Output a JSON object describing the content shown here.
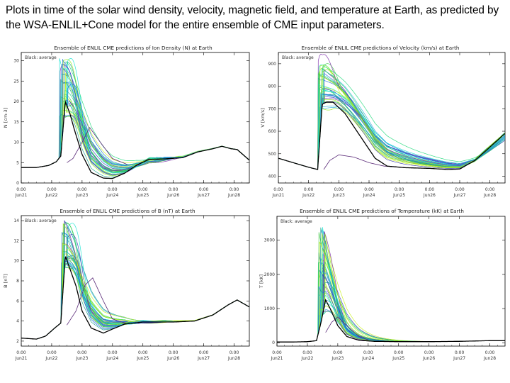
{
  "slide": {
    "title": "Plots in time of the solar wind density, velocity, magnetic field, and temperature at Earth, as predicted by the WSA-ENLIL+Cone model for the entire ensemble of CME input parameters."
  },
  "colors": {
    "average": "#000000",
    "ensemble": [
      "#17e3d2",
      "#1fd97a",
      "#8fe81a",
      "#c9f21c",
      "#2bb0d9",
      "#1b6fd8",
      "#3a3ab8",
      "#7b2aa8",
      "#1aa088",
      "#42c94a"
    ],
    "outlier": "#5a2a78",
    "frame": "#000000"
  },
  "chart_data": [
    {
      "type": "line",
      "title": "Ensemble of ENLIL CME predictions of Ion Density (N) at Earth",
      "legend": "Black: average",
      "ylabel": "N [cm-3]",
      "ylim": [
        0,
        32
      ],
      "yticks": [
        0,
        5,
        10,
        15,
        20,
        25,
        30
      ],
      "xlim": [
        0,
        7.5
      ],
      "xticks": [
        {
          "x": 0,
          "time": "0:00",
          "date": "Jun21"
        },
        {
          "x": 1,
          "time": "0:00",
          "date": "Jun22"
        },
        {
          "x": 2,
          "time": "0:00",
          "date": "Jun23"
        },
        {
          "x": 3,
          "time": "0:00",
          "date": "Jun24"
        },
        {
          "x": 4,
          "time": "0:00",
          "date": "Jun25"
        },
        {
          "x": 5,
          "time": "0:00",
          "date": "Jun26"
        },
        {
          "x": 6,
          "time": "0:00",
          "date": "Jun27"
        },
        {
          "x": 7,
          "time": "0:00",
          "date": "Jun28"
        }
      ],
      "average": [
        [
          0,
          3.8
        ],
        [
          0.5,
          3.8
        ],
        [
          0.9,
          4.3
        ],
        [
          1.15,
          5.2
        ],
        [
          1.3,
          6.6
        ],
        [
          1.45,
          20
        ],
        [
          1.6,
          17
        ],
        [
          1.75,
          13
        ],
        [
          2.0,
          7
        ],
        [
          2.3,
          2.6
        ],
        [
          2.7,
          1.2
        ],
        [
          3.0,
          1.1
        ],
        [
          3.4,
          2.4
        ],
        [
          3.8,
          4.4
        ],
        [
          4.2,
          5.8
        ],
        [
          4.7,
          5.9
        ],
        [
          5.3,
          6.2
        ],
        [
          5.8,
          7.6
        ],
        [
          6.3,
          8.4
        ],
        [
          6.6,
          9.0
        ],
        [
          6.9,
          8.4
        ],
        [
          7.1,
          8.2
        ],
        [
          7.5,
          5.6
        ]
      ],
      "ensemble": {
        "onset_start": 1.25,
        "onset_end": 1.55,
        "peak_min": 16,
        "peak_max": 31,
        "decay": 0.75,
        "baseline_low": 0.6
      },
      "outlier": [
        [
          1.5,
          5
        ],
        [
          1.7,
          6
        ],
        [
          2.0,
          10
        ],
        [
          2.25,
          13.6
        ],
        [
          2.6,
          10
        ],
        [
          3.0,
          6
        ],
        [
          3.5,
          4.5
        ]
      ]
    },
    {
      "type": "line",
      "title": "Ensemble of ENLIL CME predictions of Velocity (km/s) at Earth",
      "legend": "Black: average",
      "ylabel": "V [km/s]",
      "ylim": [
        370,
        950
      ],
      "yticks": [
        400,
        500,
        600,
        700,
        800,
        900
      ],
      "xlim": [
        0,
        7.5
      ],
      "xticks": [
        {
          "x": 0,
          "time": "0:00",
          "date": "Jun21"
        },
        {
          "x": 1,
          "time": "0:00",
          "date": "Jun22"
        },
        {
          "x": 2,
          "time": "0:00",
          "date": "Jun23"
        },
        {
          "x": 3,
          "time": "0:00",
          "date": "Jun24"
        },
        {
          "x": 4,
          "time": "0:00",
          "date": "Jun25"
        },
        {
          "x": 5,
          "time": "0:00",
          "date": "Jun26"
        },
        {
          "x": 6,
          "time": "0:00",
          "date": "Jun27"
        },
        {
          "x": 7,
          "time": "0:00",
          "date": "Jun28"
        }
      ],
      "average": [
        [
          0,
          480
        ],
        [
          0.5,
          460
        ],
        [
          1.0,
          440
        ],
        [
          1.3,
          430
        ],
        [
          1.45,
          720
        ],
        [
          1.6,
          730
        ],
        [
          1.8,
          730
        ],
        [
          2.2,
          680
        ],
        [
          2.7,
          580
        ],
        [
          3.2,
          480
        ],
        [
          3.6,
          445
        ],
        [
          4.2,
          438
        ],
        [
          5.0,
          435
        ],
        [
          5.6,
          430
        ],
        [
          6.0,
          432
        ],
        [
          6.5,
          470
        ],
        [
          7.0,
          530
        ],
        [
          7.5,
          590
        ]
      ],
      "ensemble": {
        "onset_start": 1.3,
        "onset_end": 1.55,
        "peak_min": 690,
        "peak_max": 920,
        "decay": 1.5,
        "baseline_low": 420
      },
      "outlier": [
        [
          1.5,
          430
        ],
        [
          1.7,
          470
        ],
        [
          2.0,
          495
        ],
        [
          2.5,
          485
        ],
        [
          3.0,
          460
        ],
        [
          3.5,
          445
        ],
        [
          4.0,
          440
        ]
      ]
    },
    {
      "type": "line",
      "title": "Ensemble of ENLIL CME predictions of B (nT) at Earth",
      "legend": "Black: average",
      "ylabel": "B [nT]",
      "ylim": [
        1.5,
        14.5
      ],
      "yticks": [
        2,
        4,
        6,
        8,
        10,
        12,
        14
      ],
      "xlim": [
        0,
        7.5
      ],
      "xticks": [
        {
          "x": 0,
          "time": "0:00",
          "date": "Jun21"
        },
        {
          "x": 1,
          "time": "0:00",
          "date": "Jun22"
        },
        {
          "x": 2,
          "time": "0:00",
          "date": "Jun23"
        },
        {
          "x": 3,
          "time": "0:00",
          "date": "Jun24"
        },
        {
          "x": 4,
          "time": "0:00",
          "date": "Jun25"
        },
        {
          "x": 5,
          "time": "0:00",
          "date": "Jun26"
        },
        {
          "x": 6,
          "time": "0:00",
          "date": "Jun27"
        },
        {
          "x": 7,
          "time": "0:00",
          "date": "Jun28"
        }
      ],
      "average": [
        [
          0,
          2.3
        ],
        [
          0.5,
          2.2
        ],
        [
          0.8,
          2.5
        ],
        [
          1.1,
          3.3
        ],
        [
          1.3,
          3.8
        ],
        [
          1.45,
          10.5
        ],
        [
          1.6,
          9.2
        ],
        [
          1.8,
          7.5
        ],
        [
          2.0,
          5.0
        ],
        [
          2.3,
          3.3
        ],
        [
          2.7,
          2.8
        ],
        [
          3.0,
          3.2
        ],
        [
          3.4,
          3.7
        ],
        [
          4.0,
          3.9
        ],
        [
          5.0,
          3.9
        ],
        [
          5.7,
          4.0
        ],
        [
          6.3,
          4.6
        ],
        [
          6.8,
          5.6
        ],
        [
          7.1,
          6.1
        ],
        [
          7.5,
          5.4
        ]
      ],
      "ensemble": {
        "onset_start": 1.3,
        "onset_end": 1.55,
        "peak_min": 9,
        "peak_max": 14.3,
        "decay": 0.7,
        "baseline_low": 2.6
      },
      "outlier": [
        [
          1.5,
          3.6
        ],
        [
          1.8,
          5
        ],
        [
          2.1,
          7.6
        ],
        [
          2.35,
          8.3
        ],
        [
          2.7,
          6
        ],
        [
          3.0,
          4.2
        ],
        [
          3.5,
          3.7
        ]
      ]
    },
    {
      "type": "line",
      "title": "Ensemble of ENLIL CME predictions of Temperature (kK) at Earth",
      "legend": "Black: average",
      "ylabel": "T [kK]",
      "ylim": [
        -100,
        3700
      ],
      "yticks": [
        0,
        1000,
        2000,
        3000
      ],
      "xlim": [
        0,
        7.5
      ],
      "xticks": [
        {
          "x": 0,
          "time": "0:00",
          "date": "Jun21"
        },
        {
          "x": 1,
          "time": "0:00",
          "date": "Jun22"
        },
        {
          "x": 2,
          "time": "0:00",
          "date": "Jun23"
        },
        {
          "x": 3,
          "time": "0:00",
          "date": "Jun24"
        },
        {
          "x": 4,
          "time": "0:00",
          "date": "Jun25"
        },
        {
          "x": 5,
          "time": "0:00",
          "date": "Jun26"
        },
        {
          "x": 6,
          "time": "0:00",
          "date": "Jun27"
        },
        {
          "x": 7,
          "time": "0:00",
          "date": "Jun28"
        }
      ],
      "average": [
        [
          0,
          20
        ],
        [
          0.5,
          20
        ],
        [
          1.0,
          30
        ],
        [
          1.3,
          60
        ],
        [
          1.45,
          600
        ],
        [
          1.6,
          1250
        ],
        [
          1.75,
          1000
        ],
        [
          2.0,
          500
        ],
        [
          2.3,
          180
        ],
        [
          2.7,
          70
        ],
        [
          3.2,
          40
        ],
        [
          4.0,
          30
        ],
        [
          5.0,
          30
        ],
        [
          6.0,
          40
        ],
        [
          7.0,
          60
        ],
        [
          7.5,
          60
        ]
      ],
      "ensemble": {
        "onset_start": 1.35,
        "onset_end": 1.6,
        "peak_min": 800,
        "peak_max": 3500,
        "decay": 0.45,
        "baseline_low": 15
      },
      "outlier": [
        [
          1.6,
          300
        ],
        [
          1.8,
          600
        ],
        [
          2.0,
          750
        ],
        [
          2.3,
          500
        ],
        [
          2.7,
          180
        ],
        [
          3.0,
          80
        ]
      ]
    }
  ]
}
